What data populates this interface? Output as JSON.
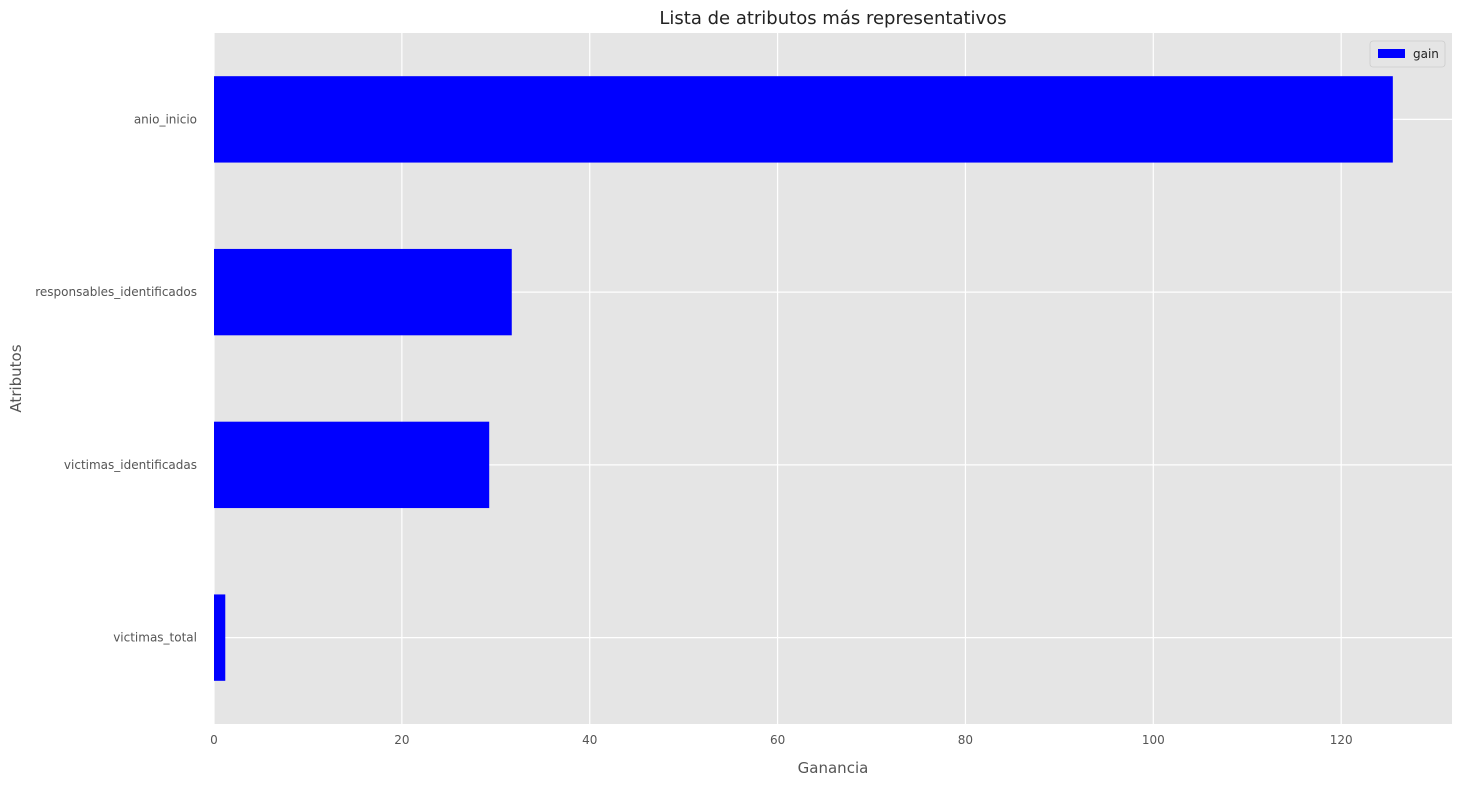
{
  "chart_data": {
    "type": "bar",
    "orientation": "horizontal",
    "title": "Lista de atributos más representativos",
    "xlabel": "Ganancia",
    "ylabel": "Atributos",
    "categories": [
      "anio_inicio",
      "responsables_identificados",
      "victimas_identificadas",
      "victimas_total"
    ],
    "series": [
      {
        "name": "gain",
        "values": [
          125.5,
          31.7,
          29.3,
          1.2
        ],
        "color": "#0000ff"
      }
    ],
    "xlim": [
      0,
      131.8
    ],
    "xticks": [
      0,
      20,
      40,
      60,
      80,
      100,
      120
    ],
    "xtick_labels": [
      "0",
      "20",
      "40",
      "60",
      "80",
      "100",
      "120"
    ],
    "grid": true,
    "legend": "top-right",
    "background_color": "#e5e5e5",
    "grid_color": "#ffffff"
  }
}
